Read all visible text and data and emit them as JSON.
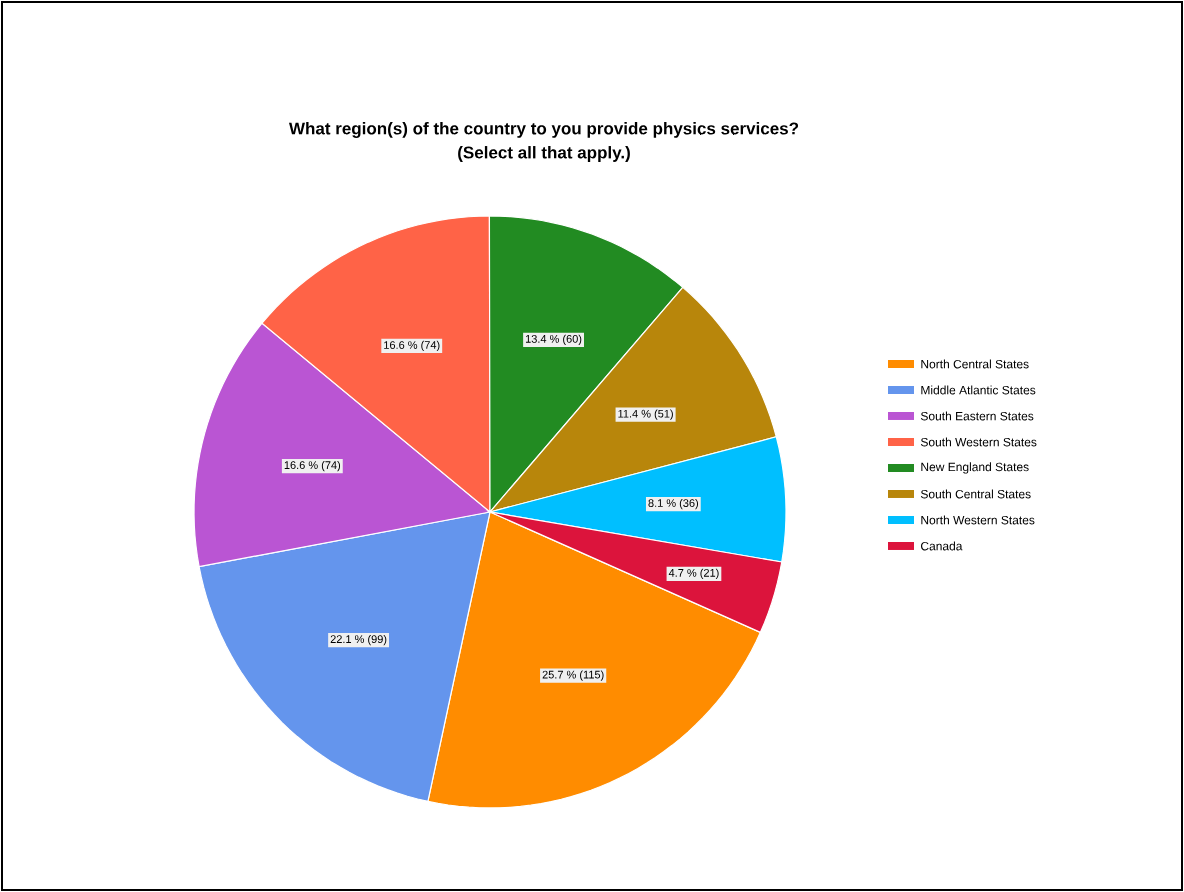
{
  "chart_data": {
    "type": "pie",
    "title": "What region(s) of the country to you provide physics services?",
    "subtitle": "(Select all that apply.)",
    "categories": [
      "North Central States",
      "Middle Atlantic States",
      "South Eastern States",
      "South Western States",
      "New England States",
      "South Central States",
      "North Western States",
      "Canada"
    ],
    "values": [
      115,
      99,
      74,
      74,
      60,
      51,
      36,
      21
    ],
    "value_labels": [
      "25.7 % (115)",
      "22.1 % (99)",
      "16.6 % (74)",
      "16.6 % (74)",
      "13.4 % (60)",
      "11.4 % (51)",
      "8.1 % (36)",
      "4.7 % (21)"
    ],
    "colors": [
      "#ff8c00",
      "#6495ed",
      "#ba55d3",
      "#ff6347",
      "#228b22",
      "#b8860b",
      "#00bfff",
      "#dc143c"
    ],
    "legend": "right"
  }
}
